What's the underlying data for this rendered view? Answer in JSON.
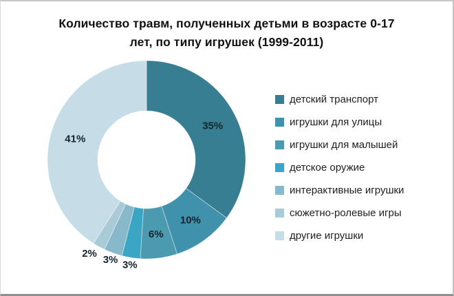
{
  "chart_data": {
    "type": "pie",
    "subtype": "donut",
    "title": "Количество травм, полученных детьми в возрасте 0-17 лет, по типу игрушек (1999-2011)",
    "title_lines": [
      "Количество травм, полученных детьми в возрасте 0-17",
      "лет, по типу игрушек (1999-2011)"
    ],
    "categories": [
      "детский транспорт",
      "игрушки для улицы",
      "игрушки для малышей",
      "детское оружие",
      "интерактивные игрушки",
      "сюжетно-ролевые игры",
      "другие игрушки"
    ],
    "values": [
      35,
      10,
      6,
      3,
      3,
      2,
      41
    ],
    "labels": [
      "35%",
      "10%",
      "6%",
      "3%",
      "3%",
      "2%",
      "41%"
    ],
    "colors": [
      "#377E93",
      "#3F91AC",
      "#4C9AB0",
      "#3BA5C4",
      "#87B9CB",
      "#A9CBD8",
      "#C6DCE6"
    ],
    "start_angle_deg": 0,
    "direction": "clockwise",
    "legend_position": "right",
    "hole_color": "#ffffff",
    "label_color": "#17232c"
  }
}
